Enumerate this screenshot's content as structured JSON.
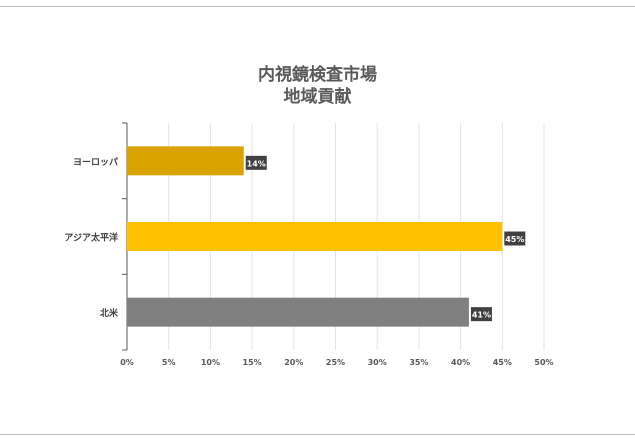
{
  "chart_data": {
    "type": "bar",
    "orientation": "horizontal",
    "title_lines": [
      "内視鏡検査市場",
      "地域貢献"
    ],
    "categories": [
      "ヨーロッパ",
      "アジア太平洋",
      "北米"
    ],
    "values": [
      14,
      45,
      41
    ],
    "value_labels": [
      "14%",
      "45%",
      "41%"
    ],
    "bar_colors": [
      "#DAA300",
      "#FFC000",
      "#808080"
    ],
    "xlim": [
      0,
      50
    ],
    "xticks": [
      "0%",
      "5%",
      "10%",
      "15%",
      "20%",
      "25%",
      "30%",
      "35%",
      "40%",
      "45%",
      "50%"
    ],
    "xtick_values": [
      0,
      5,
      10,
      15,
      20,
      25,
      30,
      35,
      40,
      45,
      50
    ],
    "grid": true,
    "legend": "none",
    "label_box_color": "#404040",
    "label_text_color": "#ffffff"
  }
}
